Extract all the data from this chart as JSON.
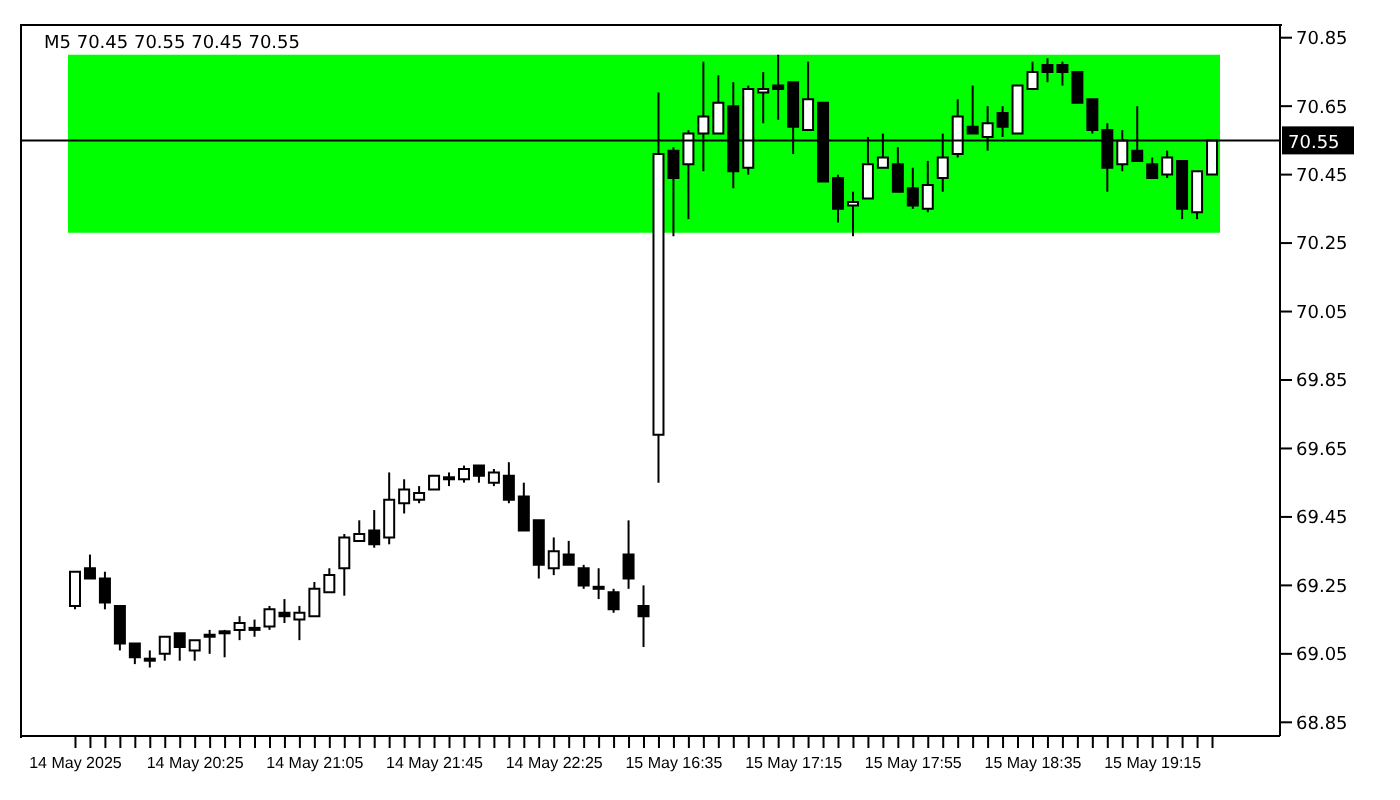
{
  "chart_data": {
    "type": "candlestick",
    "title": "M5  70.45 70.55 70.45 70.55",
    "categories": [
      "14 May 2025",
      null,
      null,
      null,
      null,
      null,
      null,
      null,
      "14 May 20:25",
      null,
      null,
      null,
      null,
      null,
      null,
      null,
      "14 May 21:05",
      null,
      null,
      null,
      null,
      null,
      null,
      null,
      "14 May 21:45",
      null,
      null,
      null,
      null,
      null,
      null,
      null,
      "14 May 22:25",
      null,
      null,
      null,
      null,
      null,
      null,
      null,
      "15 May 16:35",
      null,
      null,
      null,
      null,
      null,
      null,
      null,
      "15 May 17:15",
      null,
      null,
      null,
      null,
      null,
      null,
      null,
      "15 May 17:55",
      null,
      null,
      null,
      null,
      null,
      null,
      null,
      "15 May 18:35",
      null,
      null,
      null,
      null,
      null,
      null,
      null,
      "15 May 19:15",
      null,
      null,
      null,
      null
    ],
    "ohlc": [
      [
        69.19,
        69.29,
        69.18,
        69.29
      ],
      [
        69.3,
        69.34,
        69.27,
        69.27
      ],
      [
        69.27,
        69.29,
        69.18,
        69.2
      ],
      [
        69.19,
        69.19,
        69.06,
        69.08
      ],
      [
        69.08,
        69.08,
        69.02,
        69.04
      ],
      [
        69.03,
        69.06,
        69.01,
        69.03
      ],
      [
        69.05,
        69.1,
        69.03,
        69.1
      ],
      [
        69.11,
        69.11,
        69.03,
        69.07
      ],
      [
        69.06,
        69.09,
        69.03,
        69.09
      ],
      [
        69.1,
        69.12,
        69.05,
        69.1
      ],
      [
        69.11,
        69.12,
        69.04,
        69.11
      ],
      [
        69.12,
        69.16,
        69.09,
        69.14
      ],
      [
        69.12,
        69.15,
        69.1,
        69.12
      ],
      [
        69.13,
        69.19,
        69.12,
        69.18
      ],
      [
        69.17,
        69.21,
        69.14,
        69.16
      ],
      [
        69.15,
        69.19,
        69.09,
        69.17
      ],
      [
        69.16,
        69.26,
        69.16,
        69.24
      ],
      [
        69.23,
        69.3,
        69.23,
        69.28
      ],
      [
        69.3,
        69.4,
        69.22,
        69.39
      ],
      [
        69.38,
        69.44,
        69.38,
        69.4
      ],
      [
        69.41,
        69.47,
        69.36,
        69.37
      ],
      [
        69.39,
        69.58,
        69.37,
        69.5
      ],
      [
        69.49,
        69.56,
        69.46,
        69.53
      ],
      [
        69.5,
        69.54,
        69.49,
        69.52
      ],
      [
        69.53,
        69.57,
        69.53,
        69.57
      ],
      [
        69.56,
        69.58,
        69.54,
        69.56
      ],
      [
        69.56,
        69.6,
        69.55,
        69.59
      ],
      [
        69.6,
        69.6,
        69.55,
        69.57
      ],
      [
        69.55,
        69.59,
        69.54,
        69.58
      ],
      [
        69.57,
        69.61,
        69.49,
        69.5
      ],
      [
        69.51,
        69.55,
        69.41,
        69.41
      ],
      [
        69.44,
        69.44,
        69.27,
        69.31
      ],
      [
        69.3,
        69.39,
        69.28,
        69.35
      ],
      [
        69.34,
        69.38,
        69.31,
        69.31
      ],
      [
        69.3,
        69.31,
        69.24,
        69.25
      ],
      [
        69.24,
        69.3,
        69.21,
        69.24
      ],
      [
        69.23,
        69.24,
        69.17,
        69.18
      ],
      [
        69.34,
        69.44,
        69.24,
        69.27
      ],
      [
        69.19,
        69.25,
        69.07,
        69.16
      ],
      [
        69.69,
        70.69,
        69.55,
        70.51
      ],
      [
        70.52,
        70.53,
        70.27,
        70.44
      ],
      [
        70.48,
        70.58,
        70.32,
        70.57
      ],
      [
        70.57,
        70.78,
        70.46,
        70.62
      ],
      [
        70.57,
        70.74,
        70.57,
        70.66
      ],
      [
        70.65,
        70.72,
        70.41,
        70.46
      ],
      [
        70.47,
        70.71,
        70.45,
        70.7
      ],
      [
        70.69,
        70.75,
        70.6,
        70.7
      ],
      [
        70.71,
        70.8,
        70.61,
        70.7
      ],
      [
        70.72,
        70.72,
        70.51,
        70.59
      ],
      [
        70.58,
        70.78,
        70.58,
        70.67
      ],
      [
        70.66,
        70.66,
        70.43,
        70.43
      ],
      [
        70.44,
        70.45,
        70.31,
        70.35
      ],
      [
        70.36,
        70.4,
        70.27,
        70.37
      ],
      [
        70.38,
        70.56,
        70.38,
        70.48
      ],
      [
        70.47,
        70.57,
        70.47,
        70.5
      ],
      [
        70.48,
        70.53,
        70.4,
        70.4
      ],
      [
        70.41,
        70.47,
        70.35,
        70.36
      ],
      [
        70.35,
        70.49,
        70.34,
        70.42
      ],
      [
        70.44,
        70.57,
        70.4,
        70.5
      ],
      [
        70.51,
        70.67,
        70.5,
        70.62
      ],
      [
        70.59,
        70.71,
        70.57,
        70.57
      ],
      [
        70.56,
        70.65,
        70.52,
        70.6
      ],
      [
        70.63,
        70.65,
        70.56,
        70.59
      ],
      [
        70.57,
        70.71,
        70.57,
        70.71
      ],
      [
        70.7,
        70.78,
        70.7,
        70.75
      ],
      [
        70.77,
        70.79,
        70.72,
        70.75
      ],
      [
        70.77,
        70.78,
        70.71,
        70.75
      ],
      [
        70.75,
        70.75,
        70.66,
        70.66
      ],
      [
        70.67,
        70.67,
        70.57,
        70.58
      ],
      [
        70.58,
        70.6,
        70.4,
        70.47
      ],
      [
        70.48,
        70.58,
        70.46,
        70.55
      ],
      [
        70.52,
        70.65,
        70.49,
        70.49
      ],
      [
        70.48,
        70.5,
        70.44,
        70.44
      ],
      [
        70.45,
        70.52,
        70.44,
        70.5
      ],
      [
        70.49,
        70.49,
        70.32,
        70.35
      ],
      [
        70.34,
        70.46,
        70.32,
        70.46
      ],
      [
        70.45,
        70.55,
        70.45,
        70.55
      ]
    ],
    "ylim": [
      68.81,
      70.89
    ],
    "yticks": [
      68.85,
      69.05,
      69.25,
      69.45,
      69.65,
      69.85,
      70.05,
      70.25,
      70.45,
      70.65,
      70.85
    ],
    "ref_lines": [
      {
        "axis": "y",
        "value": 70.55,
        "label": "70.55",
        "color": "#000000"
      }
    ],
    "bands": [
      {
        "axis": "y",
        "from": 70.28,
        "to": 70.8,
        "color": "#00ff00"
      }
    ],
    "grid": false,
    "legend": false
  }
}
